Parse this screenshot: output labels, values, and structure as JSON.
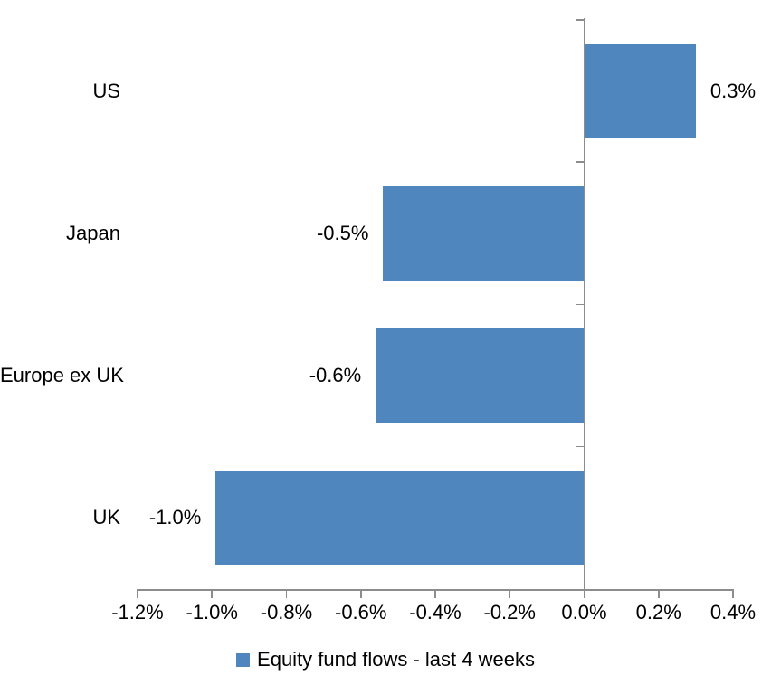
{
  "chart_data": {
    "type": "bar",
    "orientation": "horizontal",
    "title": "",
    "xlabel": "",
    "ylabel": "",
    "categories": [
      "US",
      "Japan",
      "Europe ex UK",
      "UK"
    ],
    "values": [
      0.3,
      -0.54,
      -0.56,
      -0.99
    ],
    "data_labels": [
      "0.3%",
      "-0.5%",
      "-0.6%",
      "-1.0%"
    ],
    "series": [
      {
        "name": "Equity fund flows - last 4 weeks",
        "values": [
          0.3,
          -0.54,
          -0.56,
          -0.99
        ]
      }
    ],
    "legend": {
      "label": "Equity fund flows - last 4 weeks",
      "position": "bottom"
    },
    "x_axis": {
      "min": -1.2,
      "max": 0.4,
      "tick_step": 0.2,
      "ticks": [
        {
          "value": -1.2,
          "label": "-1.2%"
        },
        {
          "value": -1.0,
          "label": "-1.0%"
        },
        {
          "value": -0.8,
          "label": "-0.8%"
        },
        {
          "value": -0.6,
          "label": "-0.6%"
        },
        {
          "value": -0.4,
          "label": "-0.4%"
        },
        {
          "value": -0.2,
          "label": "-0.2%"
        },
        {
          "value": 0.0,
          "label": "0.0%"
        },
        {
          "value": 0.2,
          "label": "0.2%"
        },
        {
          "value": 0.4,
          "label": "0.4%"
        }
      ]
    },
    "grid": false,
    "colors": {
      "bar": "#4F86BD",
      "axis": "#8C8C8C",
      "text": "#000000",
      "background": "#FFFFFF"
    }
  }
}
